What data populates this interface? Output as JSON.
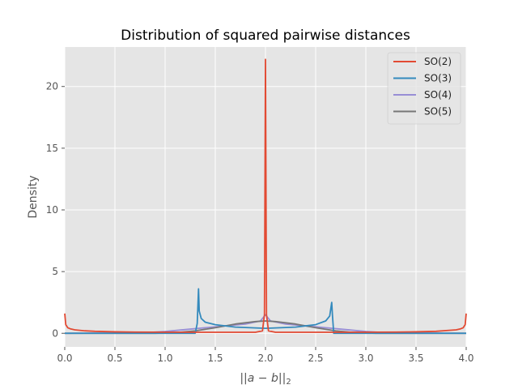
{
  "chart_data": {
    "type": "line",
    "title": "Distribution of squared pairwise distances",
    "xlabel": "||a − b||₂",
    "ylabel": "Density",
    "xlim": [
      0,
      4
    ],
    "ylim": [
      -1.1,
      23.2
    ],
    "xticks": [
      0,
      0.5,
      1,
      1.5,
      2,
      2.5,
      3,
      3.5,
      4
    ],
    "xtick_labels": [
      "0.0",
      "0.5",
      "1.0",
      "1.5",
      "2.0",
      "2.5",
      "3.0",
      "3.5",
      "4.0"
    ],
    "yticks": [
      0,
      5,
      10,
      15,
      20
    ],
    "ytick_labels": [
      "0",
      "5",
      "10",
      "15",
      "20"
    ],
    "grid": true,
    "legend_position": "top-right",
    "series": [
      {
        "name": "SO(2)",
        "color": "#E24A33",
        "x": [
          0,
          0.01,
          0.03,
          0.06,
          0.1,
          0.2,
          0.3,
          0.5,
          0.7,
          1.0,
          1.3,
          1.6,
          1.9,
          1.97,
          1.99,
          1.995,
          2.0,
          2.005,
          2.01,
          2.03,
          2.1,
          2.4,
          2.7,
          3.0,
          3.3,
          3.5,
          3.7,
          3.9,
          3.94,
          3.97,
          3.99,
          4.0
        ],
        "y": [
          1.6,
          0.7,
          0.45,
          0.35,
          0.28,
          0.2,
          0.16,
          0.12,
          0.1,
          0.09,
          0.08,
          0.08,
          0.08,
          0.2,
          1.5,
          12.0,
          22.2,
          12.0,
          1.5,
          0.2,
          0.08,
          0.08,
          0.08,
          0.09,
          0.1,
          0.12,
          0.16,
          0.28,
          0.35,
          0.45,
          0.7,
          1.6
        ]
      },
      {
        "name": "SO(3)",
        "color": "#348ABD",
        "x": [
          0,
          0.5,
          1.0,
          1.2,
          1.3,
          1.32,
          1.333,
          1.34,
          1.36,
          1.4,
          1.5,
          1.7,
          2.0,
          2.3,
          2.5,
          2.6,
          2.64,
          2.66,
          2.667,
          2.68,
          2.7,
          2.8,
          3.0,
          3.5,
          4.0
        ],
        "y": [
          0,
          0.0,
          0.0,
          0.0,
          0.0,
          0.8,
          3.6,
          1.8,
          1.2,
          0.9,
          0.7,
          0.5,
          0.4,
          0.5,
          0.7,
          1.0,
          1.4,
          2.5,
          1.5,
          0.0,
          0.0,
          0.0,
          0.0,
          0.0,
          0
        ]
      },
      {
        "name": "SO(4)",
        "color": "#988ED5",
        "x": [
          0,
          0.5,
          0.8,
          1.0,
          1.2,
          1.4,
          1.6,
          1.8,
          1.95,
          2.0,
          2.05,
          2.2,
          2.4,
          2.6,
          2.8,
          3.0,
          3.2,
          3.5,
          4.0
        ],
        "y": [
          0,
          0.02,
          0.05,
          0.15,
          0.3,
          0.45,
          0.6,
          0.75,
          1.0,
          1.5,
          1.0,
          0.75,
          0.6,
          0.45,
          0.3,
          0.15,
          0.05,
          0.02,
          0
        ]
      },
      {
        "name": "SO(5)",
        "color": "#777777",
        "x": [
          0,
          0.5,
          0.9,
          1.1,
          1.3,
          1.5,
          1.7,
          1.9,
          2.0,
          2.1,
          2.3,
          2.5,
          2.7,
          2.9,
          3.1,
          3.5,
          4.0
        ],
        "y": [
          0,
          0.0,
          0.0,
          0.05,
          0.2,
          0.45,
          0.75,
          0.95,
          1.0,
          0.95,
          0.75,
          0.45,
          0.2,
          0.05,
          0.0,
          0.0,
          0
        ]
      }
    ]
  }
}
